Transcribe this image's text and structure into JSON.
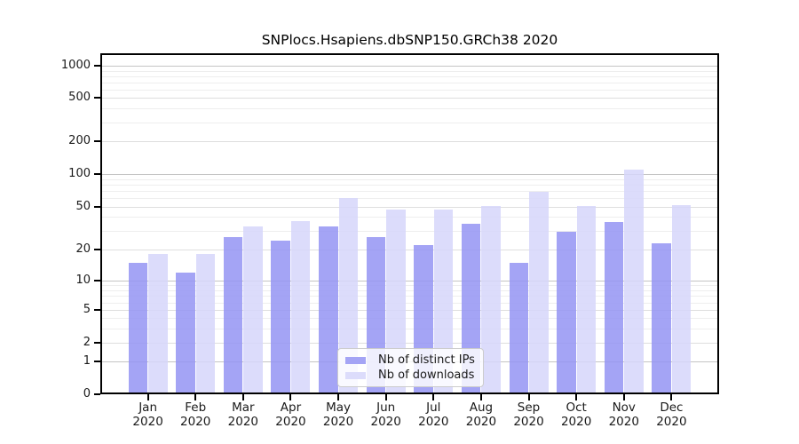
{
  "title": "SNPlocs.Hsapiens.dbSNP150.GRCh38 2020",
  "colors": {
    "distinct_ips_fill": "rgba(148,148,243,0.85)",
    "downloads_fill": "rgba(214,214,250,0.85)",
    "distinct_ips_legend": "#a4a4f5",
    "downloads_legend": "#dcdcfb",
    "grid_decade": "#c4c4c4",
    "grid_labeled": "#dedede",
    "grid_minor": "#eeeeee",
    "axis": "#000000",
    "text": "#1a1a1a"
  },
  "y_axis": {
    "tick_labels": [
      "0",
      "1",
      "2",
      "5",
      "10",
      "20",
      "50",
      "100",
      "200",
      "500",
      "1000"
    ],
    "tick_values": [
      0,
      1,
      2,
      5,
      10,
      20,
      50,
      100,
      200,
      500,
      1000
    ]
  },
  "x_axis": {
    "months": [
      "Jan",
      "Feb",
      "Mar",
      "Apr",
      "May",
      "Jun",
      "Jul",
      "Aug",
      "Sep",
      "Oct",
      "Nov",
      "Dec"
    ],
    "year": "2020"
  },
  "chart_data": {
    "type": "bar",
    "grouped": true,
    "title": "SNPlocs.Hsapiens.dbSNP150.GRCh38 2020",
    "categories": [
      "Jan 2020",
      "Feb 2020",
      "Mar 2020",
      "Apr 2020",
      "May 2020",
      "Jun 2020",
      "Jul 2020",
      "Aug 2020",
      "Sep 2020",
      "Oct 2020",
      "Nov 2020",
      "Dec 2020"
    ],
    "series": [
      {
        "name": "Nb of distinct IPs",
        "values": [
          15,
          12,
          26,
          24,
          33,
          26,
          22,
          35,
          15,
          29,
          36,
          23
        ]
      },
      {
        "name": "Nb of downloads",
        "values": [
          18,
          18,
          33,
          37,
          60,
          47,
          47,
          51,
          68,
          51,
          110,
          52
        ]
      }
    ],
    "xlabel": "",
    "ylabel": "",
    "yscale": "log-like (0, 1–1000)",
    "ylim": [
      0,
      1000
    ],
    "grid": true,
    "legend_position": "lower center"
  }
}
